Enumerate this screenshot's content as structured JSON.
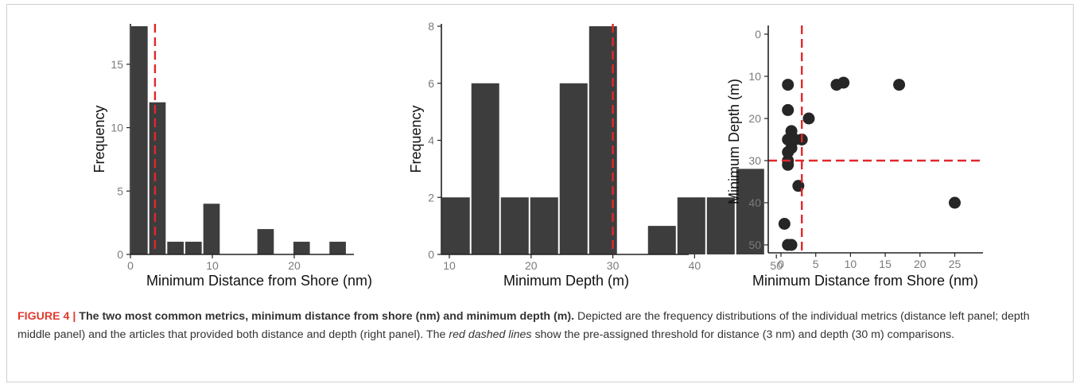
{
  "colors": {
    "bar": "#3d3d3d",
    "point": "#262626",
    "threshold": "#e0282c",
    "axis": "#222222",
    "tick_text": "#7a7a7a",
    "label_text": "#111111"
  },
  "chart_data": [
    {
      "type": "bar",
      "xlabel": "Minimum Distance from Shore (nm)",
      "ylabel": "Frequency",
      "xlim": [
        0,
        27
      ],
      "ylim": [
        0,
        18
      ],
      "xticks": [
        0,
        10,
        20
      ],
      "yticks": [
        0,
        5,
        10,
        15
      ],
      "bin_width": 2.2,
      "bins": [
        {
          "x0": 0,
          "count": 18
        },
        {
          "x0": 2.2,
          "count": 12
        },
        {
          "x0": 4.4,
          "count": 1
        },
        {
          "x0": 6.6,
          "count": 1
        },
        {
          "x0": 8.8,
          "count": 4
        },
        {
          "x0": 11.0,
          "count": 0
        },
        {
          "x0": 13.2,
          "count": 0
        },
        {
          "x0": 15.4,
          "count": 2
        },
        {
          "x0": 17.6,
          "count": 0
        },
        {
          "x0": 19.8,
          "count": 1
        },
        {
          "x0": 22.0,
          "count": 0
        },
        {
          "x0": 24.2,
          "count": 1
        }
      ],
      "threshold_x": 3
    },
    {
      "type": "bar",
      "xlabel": "Minimum Depth (m)",
      "ylabel": "Frequency",
      "xlim": [
        9,
        55
      ],
      "ylim": [
        0,
        8
      ],
      "xticks": [
        10,
        20,
        30,
        40,
        50
      ],
      "yticks": [
        0,
        2,
        4,
        6,
        8
      ],
      "bin_width": 3.6,
      "bins": [
        {
          "x0": 9.0,
          "count": 2
        },
        {
          "x0": 12.6,
          "count": 6
        },
        {
          "x0": 16.2,
          "count": 2
        },
        {
          "x0": 19.8,
          "count": 2
        },
        {
          "x0": 23.4,
          "count": 6
        },
        {
          "x0": 27.0,
          "count": 8
        },
        {
          "x0": 30.6,
          "count": 0
        },
        {
          "x0": 34.2,
          "count": 1
        },
        {
          "x0": 37.8,
          "count": 2
        },
        {
          "x0": 41.4,
          "count": 2
        },
        {
          "x0": 45.0,
          "count": 3
        }
      ],
      "threshold_x": 30
    },
    {
      "type": "scatter",
      "xlabel": "Minimum Distance from Shore (nm)",
      "ylabel": "Minimum Depth (m)",
      "xlim": [
        -1,
        26
      ],
      "ylim": [
        0,
        52
      ],
      "y_reversed": true,
      "xticks": [
        0,
        5,
        10,
        15,
        20,
        25
      ],
      "yticks": [
        0,
        10,
        20,
        30,
        40,
        50
      ],
      "points": [
        {
          "x": 1,
          "y": 12
        },
        {
          "x": 8,
          "y": 12
        },
        {
          "x": 9,
          "y": 11.5
        },
        {
          "x": 17,
          "y": 12
        },
        {
          "x": 1,
          "y": 18
        },
        {
          "x": 4,
          "y": 20
        },
        {
          "x": 1.5,
          "y": 23
        },
        {
          "x": 1,
          "y": 25
        },
        {
          "x": 2,
          "y": 25
        },
        {
          "x": 3,
          "y": 25
        },
        {
          "x": 1.5,
          "y": 27
        },
        {
          "x": 1,
          "y": 28
        },
        {
          "x": 1,
          "y": 30
        },
        {
          "x": 1,
          "y": 31
        },
        {
          "x": 2.5,
          "y": 36
        },
        {
          "x": 25,
          "y": 40
        },
        {
          "x": 0.5,
          "y": 45
        },
        {
          "x": 1,
          "y": 50
        },
        {
          "x": 1.5,
          "y": 50
        }
      ],
      "threshold_x": 3,
      "threshold_y": 30
    }
  ],
  "caption": {
    "label": "FIGURE 4 |",
    "title": "The two most common metrics, minimum distance from shore (nm) and minimum depth (m).",
    "text_1": "Depicted are the frequency distributions of the individual metrics (distance left panel; depth middle panel) and the articles that provided both distance and depth (right panel). The",
    "emphasis": "red dashed lines",
    "text_2": "show the pre-assigned threshold for distance (3 nm) and depth (30 m) comparisons."
  }
}
